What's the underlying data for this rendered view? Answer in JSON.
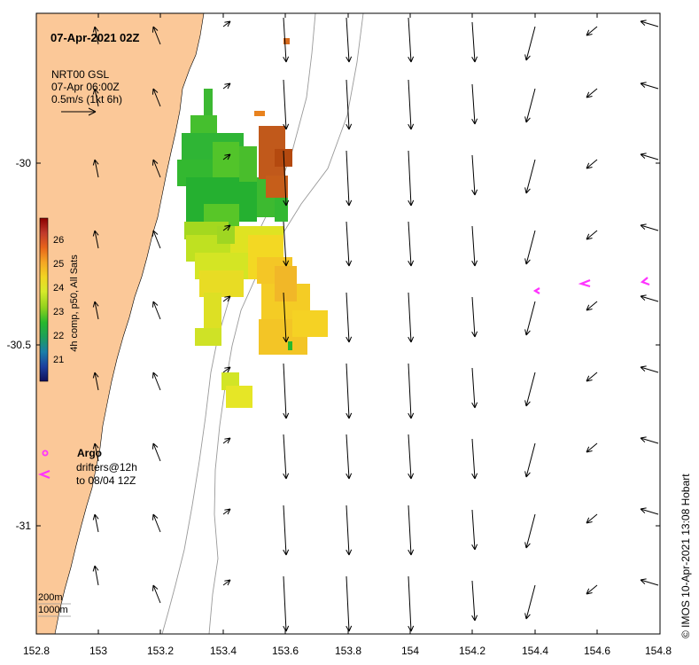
{
  "map": {
    "title": "07-Apr-2021 02Z",
    "vector_legend": {
      "line1": "NRT00 GSL",
      "line2": "07-Apr 06:00Z",
      "line3": "0.5m/s (1kt 6h)"
    },
    "colorbar": {
      "label": "4h comp, p50, All Sats",
      "ticks": [
        "26",
        "25",
        "24",
        "23",
        "22",
        "21"
      ],
      "colors": [
        "#8b0000",
        "#c0392b",
        "#e8641a",
        "#f5a623",
        "#f2d422",
        "#d7ea2a",
        "#8fd11e",
        "#28b82d",
        "#1e9e5a",
        "#1a7ea8",
        "#1d3f9e",
        "#10105a"
      ]
    },
    "symbol_legend": {
      "argo": "Argo",
      "drifters_line1": "drifters@12h",
      "drifters_line2": "to 08/04 12Z"
    },
    "depth_legend": {
      "line1": "200m",
      "line2": "1000m"
    },
    "credit": "© IMOS 10-Apr-2021 13:08 Hobart",
    "x_ticks": [
      "152.8",
      "153",
      "153.2",
      "153.4",
      "153.6",
      "153.8",
      "154",
      "154.2",
      "154.4",
      "154.6",
      "154.8"
    ],
    "y_ticks": [
      "-30",
      "-30.5",
      "-31"
    ],
    "colors": {
      "land": "#fbc898",
      "ocean": "#ffffff",
      "drifter": "#ff33ff",
      "contour": "#999999"
    }
  }
}
